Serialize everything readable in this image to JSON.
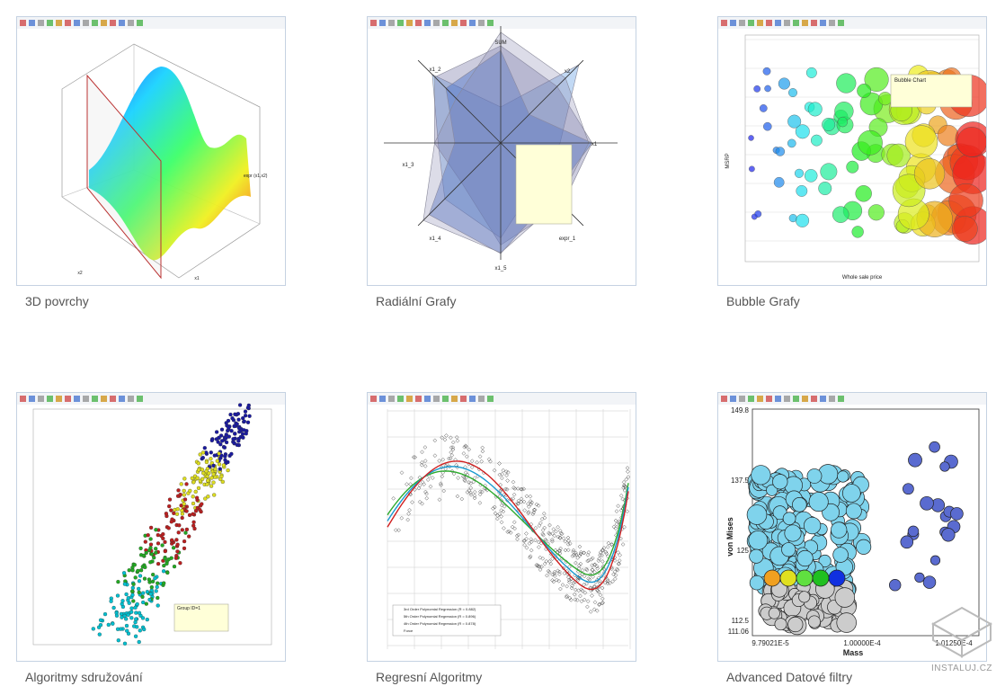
{
  "gallery": {
    "items": [
      {
        "caption": "3D povrchy",
        "labels": [
          "expr (x1,x2)",
          "x2",
          "x1"
        ]
      },
      {
        "caption": "Radiální Grafy",
        "labels": [
          "SUM",
          "x2",
          "x1",
          "x1_2",
          "x1_3",
          "x1_4",
          "x1_5",
          "expr_1"
        ]
      },
      {
        "caption": "Bubble Grafy",
        "labels": [
          "Bubble Chart",
          "MSRP",
          "Whole sale price"
        ]
      },
      {
        "caption": "Algoritmy sdružování",
        "labels": [
          "Group ID=1"
        ]
      },
      {
        "caption": "Regresní Algoritmy",
        "labels": [
          "3rd Order Polynomial Regression (R = 0.882)",
          "5th Order Polynomial Regression (R = 0.896)",
          "4th Order Polynomial Regression (R = 0.878)",
          "Force"
        ]
      },
      {
        "caption": "Advanced Datové filtry",
        "labels": [
          "von Mises",
          "Mass",
          "149.8",
          "137.5",
          "125",
          "112.5",
          "111.06",
          "9.79021E-5",
          "1.00000E-4",
          "1.01250E-4"
        ]
      }
    ]
  },
  "watermark": "INSTALUJ.CZ"
}
